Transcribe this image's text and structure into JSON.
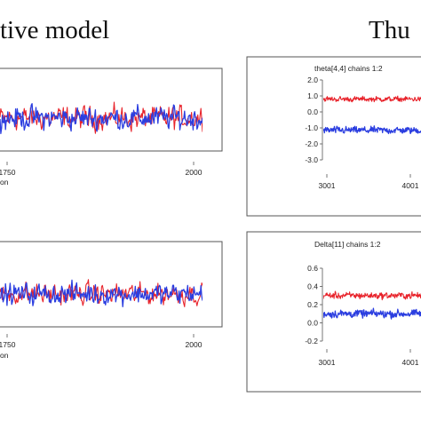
{
  "headings": {
    "left": "tive model",
    "right": "Thu"
  },
  "colors": {
    "chain1": "#e8222a",
    "chain2": "#2b3ee0",
    "frame": "#555555",
    "tick_text": "#222222"
  },
  "chart_data": [
    {
      "type": "line",
      "panel": "top-left",
      "title": "",
      "xlabel": "on",
      "ylabel": "",
      "x_tick_labels": [
        "1750",
        "2000"
      ],
      "xlim": [
        1000,
        2000
      ],
      "series": [
        {
          "color": "#e8222a",
          "mean": 0.0,
          "spread": 1.0
        },
        {
          "color": "#2b3ee0",
          "mean": 0.0,
          "spread": 1.0
        }
      ]
    },
    {
      "type": "line",
      "panel": "top-right",
      "title": "theta[4,4] chains 1:2",
      "xlabel": "",
      "ylabel": "",
      "x_tick_labels": [
        "3001",
        "4001"
      ],
      "y_tick_labels": [
        "2.0",
        "1.0",
        "0.0",
        "-1.0",
        "-2.0",
        "-3.0"
      ],
      "ylim": [
        -3.0,
        2.0
      ],
      "series": [
        {
          "color": "#e8222a",
          "mean": 0.8,
          "spread": 0.22
        },
        {
          "color": "#2b3ee0",
          "mean": -1.15,
          "spread": 0.3
        }
      ]
    },
    {
      "type": "line",
      "panel": "bottom-left",
      "title": "",
      "xlabel": "on",
      "ylabel": "",
      "x_tick_labels": [
        "1750",
        "2000"
      ],
      "xlim": [
        1000,
        2000
      ],
      "series": [
        {
          "color": "#e8222a",
          "mean": 0.0,
          "spread": 1.0
        },
        {
          "color": "#2b3ee0",
          "mean": 0.0,
          "spread": 1.0
        }
      ]
    },
    {
      "type": "line",
      "panel": "bottom-right",
      "title": "Delta[11] chains 1:2",
      "xlabel": "",
      "ylabel": "",
      "x_tick_labels": [
        "3001",
        "4001"
      ],
      "y_tick_labels": [
        "0.6",
        "0.4",
        "0.2",
        "0.0",
        "-0.2"
      ],
      "ylim": [
        -0.2,
        0.6
      ],
      "series": [
        {
          "color": "#e8222a",
          "mean": 0.3,
          "spread": 0.05
        },
        {
          "color": "#2b3ee0",
          "mean": 0.1,
          "spread": 0.06
        }
      ]
    }
  ]
}
